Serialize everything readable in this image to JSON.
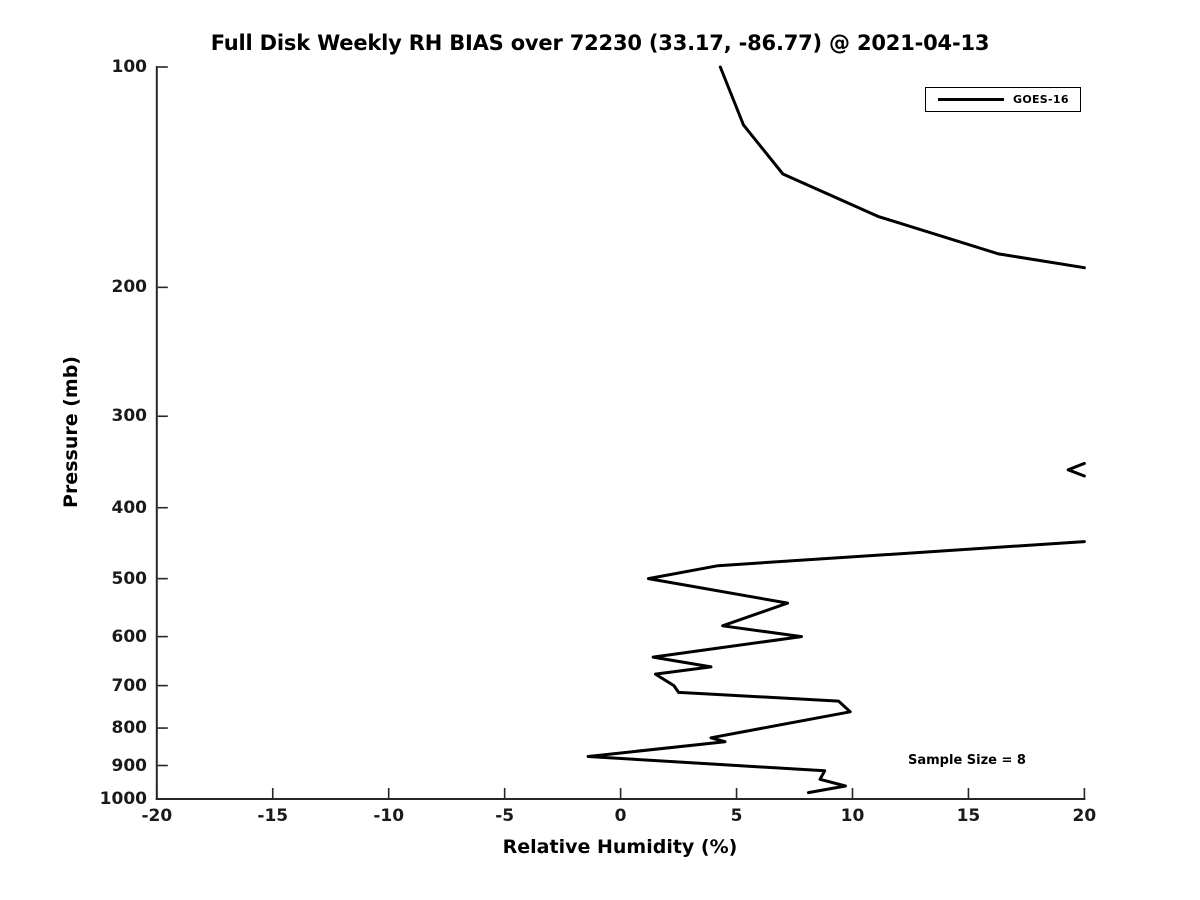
{
  "colors": {
    "series": "#000000",
    "axis": "#262626",
    "background": "#ffffff"
  },
  "legend": {
    "entries": [
      {
        "label": "GOES-16",
        "line_color": "#000000"
      }
    ]
  },
  "annotation": {
    "text": "Sample Size = 8"
  },
  "chart_data": {
    "type": "line",
    "title": "Full Disk Weekly RH BIAS over 72230 (33.17, -86.77) @ 2021-04-13",
    "xlabel": "Relative Humidity (%)",
    "ylabel": "Pressure (mb)",
    "xlim": [
      -20,
      20
    ],
    "ylim": [
      100,
      1000
    ],
    "y_scale": "log",
    "y_inverted": true,
    "grid": false,
    "x_ticks": [
      -20,
      -15,
      -10,
      -5,
      0,
      5,
      10,
      15,
      20
    ],
    "y_ticks": [
      100,
      200,
      300,
      400,
      500,
      600,
      700,
      800,
      900,
      1000
    ],
    "legend_position": "upper right",
    "legend_entries": [
      "GOES-16"
    ],
    "annotation": "Sample Size = 8",
    "series": [
      {
        "name": "GOES-16",
        "color": "#000000",
        "line_width": 3,
        "note": "RH bias exceeds the 20% axis limit between ~190 mb and ~445 mb (except a dip to ~19.3% near 355 mb), so the curve is drawn clipped at the right edge; values estimated from pixels.",
        "segments": [
          {
            "pressure_mb": [
              100,
              120,
              140,
              160,
              180,
              188
            ],
            "rh_bias_pct": [
              4.3,
              5.3,
              7.0,
              11.1,
              16.3,
              20.0
            ]
          },
          {
            "pressure_mb": [
              348,
              355,
              362
            ],
            "rh_bias_pct": [
              20.0,
              19.3,
              20.0
            ]
          },
          {
            "pressure_mb": [
              445,
              480,
              500,
              540,
              580,
              600,
              640,
              660,
              675,
              700,
              715,
              735,
              760,
              825,
              835,
              875,
              915,
              940,
              960,
              980
            ],
            "rh_bias_pct": [
              20.0,
              4.2,
              1.2,
              7.2,
              4.4,
              7.8,
              1.4,
              3.9,
              1.5,
              2.3,
              2.5,
              9.4,
              9.9,
              3.9,
              4.5,
              -1.4,
              8.8,
              8.6,
              9.7,
              8.1
            ]
          }
        ]
      }
    ]
  }
}
